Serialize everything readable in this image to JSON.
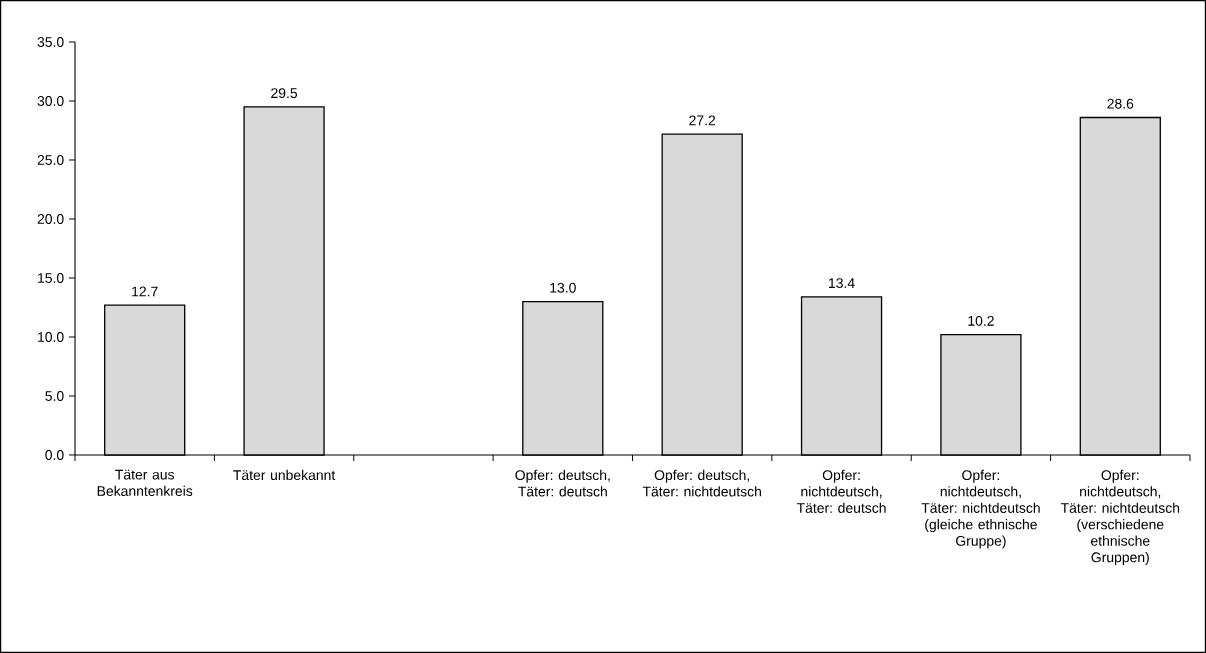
{
  "chart_data": {
    "type": "bar",
    "categories": [
      "Täter aus Bekanntenkreis",
      "Täter unbekannt",
      null,
      "Opfer: deutsch, Täter: deutsch",
      "Opfer: deutsch, Täter: nichtdeutsch",
      "Opfer: nichtdeutsch, Täter: deutsch",
      "Opfer: nichtdeutsch, Täter: nichtdeutsch (gleiche ethnische Gruppe)",
      "Opfer: nichtdeutsch, Täter: nichtdeutsch (verschiedene ethnische Gruppen)"
    ],
    "values": [
      12.7,
      29.5,
      null,
      13.0,
      27.2,
      13.4,
      10.2,
      28.6
    ],
    "color": "#d9d9d9",
    "ylim": [
      0,
      35
    ],
    "yticks": [
      {
        "value": 0,
        "label": "0.0"
      },
      {
        "value": 5,
        "label": "5.0"
      },
      {
        "value": 10,
        "label": "10.0"
      },
      {
        "value": 15,
        "label": "15.0"
      },
      {
        "value": 20,
        "label": "20.0"
      },
      {
        "value": 25,
        "label": "25.0"
      },
      {
        "value": 30,
        "label": "30.0"
      },
      {
        "value": 35,
        "label": "35.0"
      }
    ],
    "value_labels": [
      "12.7",
      "29.5",
      null,
      "13.0",
      "27.2",
      "13.4",
      "10.2",
      "28.6"
    ]
  }
}
